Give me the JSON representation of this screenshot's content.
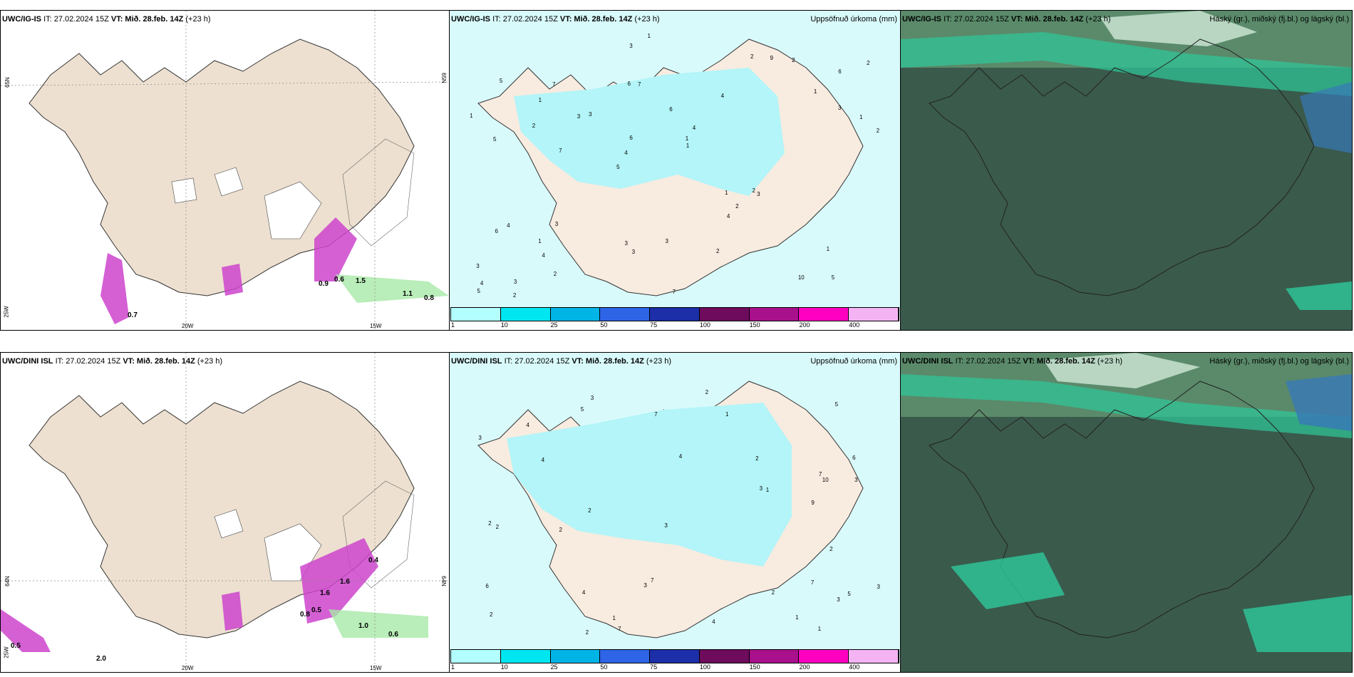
{
  "rows": [
    {
      "left": {
        "model": "UWC/IG-IS",
        "it": "IT: 27.02.2024 15Z",
        "vt": "VT: Mið. 28.feb. 14Z",
        "lead": "(+23 h)",
        "grid_labels": {
          "lat_left": "65N",
          "lat_right": "65N",
          "lon_a": "20W",
          "lon_b": "15W",
          "lon_side": "25W"
        }
      },
      "mid": {
        "model": "UWC/IG-IS",
        "it": "IT: 27.02.2024 15Z",
        "vt": "VT: Mið. 28.feb. 14Z",
        "lead": "(+23 h)",
        "title": "Uppsöfnuð úrkoma (mm)"
      },
      "right": {
        "model": "UWC/IG-IS",
        "it": "IT: 27.02.2024 15Z",
        "vt": "VT: Mið. 28.feb. 14Z",
        "lead": "(+23 h)",
        "title": "Háský (gr.), miðský (fj.bl.) og lágský (bl.)"
      }
    },
    {
      "left": {
        "model": "UWC/DINI ISL",
        "it": "IT: 27.02.2024 15Z",
        "vt": "VT: Mið. 28.feb. 14Z",
        "lead": "(+23 h)",
        "grid_labels": {
          "lat_left": "64N",
          "lat_right": "64N",
          "lon_a": "20W",
          "lon_b": "15W",
          "lon_side": "25W"
        }
      },
      "mid": {
        "model": "UWC/DINI ISL",
        "it": "IT: 27.02.2024 15Z",
        "vt": "VT: Mið. 28.feb. 14Z",
        "lead": "(+23 h)",
        "title": "Uppsöfnuð úrkoma (mm)"
      },
      "right": {
        "model": "UWC/DINI ISL",
        "it": "IT: 27.02.2024 15Z",
        "vt": "VT: Mið. 28.feb. 14Z",
        "lead": "(+23 h)",
        "title": "Háský (gr.), miðský (fj.bl.) og lágský (bl.)"
      }
    }
  ],
  "colorbar": {
    "labels": [
      "1",
      "10",
      "25",
      "50",
      "75",
      "100",
      "150",
      "200",
      "400"
    ],
    "colors": [
      "#b3ffff",
      "#00e6f0",
      "#00b4e6",
      "#2e64e6",
      "#1c2ea8",
      "#6e0b5c",
      "#a8108c",
      "#ff00c0",
      "#f4b4f4"
    ]
  },
  "precip_numbers_top": [
    "5",
    "5",
    "6",
    "5",
    "4",
    "3",
    "6",
    "6",
    "4",
    "3",
    "3",
    "4",
    "7",
    "4",
    "3",
    "5",
    "3",
    "2",
    "1",
    "3",
    "4",
    "3",
    "6",
    "7",
    "2",
    "3",
    "10",
    "1",
    "2",
    "7",
    "3",
    "2",
    "4",
    "2",
    "1",
    "1",
    "4",
    "3",
    "1",
    "6",
    "1",
    "2",
    "2",
    "2",
    "1",
    "2",
    "5",
    "3",
    "2",
    "1",
    "7",
    "1",
    "1",
    "9"
  ],
  "precip_numbers_bottom": [
    "7",
    "6",
    "5",
    "4",
    "2",
    "3",
    "7",
    "4",
    "5",
    "4",
    "3",
    "3",
    "9",
    "7",
    "6",
    "4",
    "3",
    "5",
    "7",
    "10",
    "2",
    "2",
    "4",
    "3",
    "1",
    "3",
    "2",
    "1",
    "2",
    "3",
    "2",
    "2",
    "2",
    "3",
    "2",
    "1",
    "1",
    "7",
    "1",
    "2"
  ],
  "cmap_values_top": [
    "0.7",
    "0.6",
    "1.5",
    "1.1",
    "0.8",
    "0.9"
  ],
  "cmap_values_bottom": [
    "0.4",
    "1.6",
    "1.6",
    "0.5",
    "1.0",
    "0.6",
    "2.0",
    "0.8",
    "0.5"
  ],
  "colors": {
    "land": "#f4e6d8",
    "land_wind": "#ede0d0",
    "precip_light": "#b3f5f8",
    "magenta": "#cc44cc",
    "green_light": "#a8e8a8",
    "cloud_dark": "#3a5a4c",
    "cloud_mid": "#5a8a6a",
    "cloud_teal": "#2ec89a",
    "cloud_blue": "#3878b8"
  }
}
